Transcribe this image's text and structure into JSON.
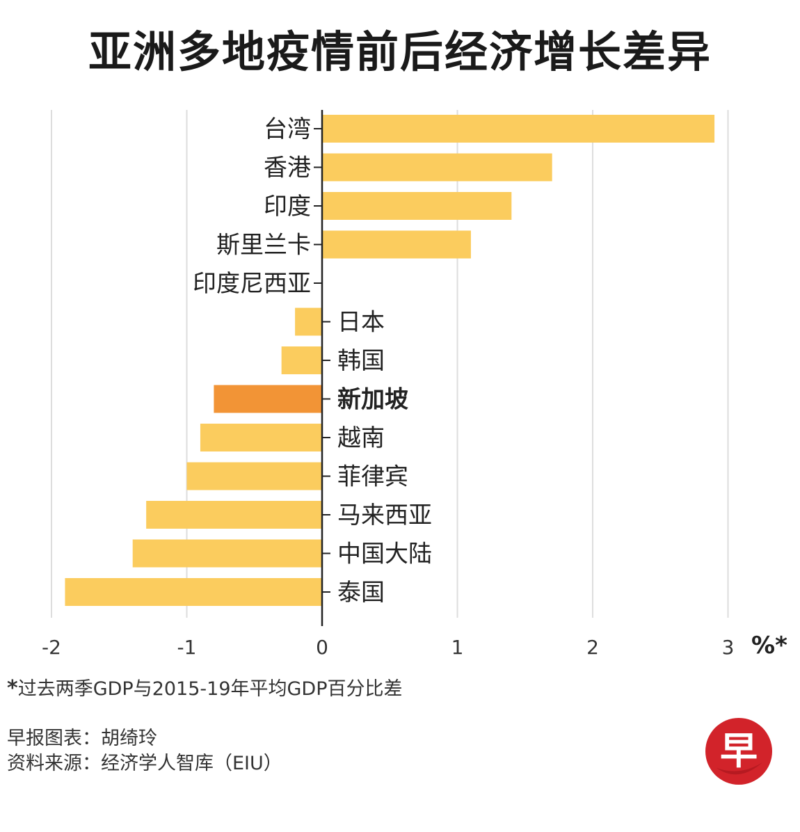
{
  "title": "亚洲多地疫情前后经济增长差异",
  "chart_data": {
    "type": "bar",
    "orientation": "horizontal",
    "categories": [
      "台湾",
      "香港",
      "印度",
      "斯里兰卡",
      "印度尼西亚",
      "日本",
      "韩国",
      "新加坡",
      "越南",
      "菲律宾",
      "马来西亚",
      "中国大陆",
      "泰国"
    ],
    "values": [
      2.9,
      1.7,
      1.4,
      1.1,
      0.0,
      -0.2,
      -0.3,
      -0.8,
      -0.9,
      -1.0,
      -1.3,
      -1.4,
      -1.9
    ],
    "highlight": "新加坡",
    "x_ticks": [
      "-2",
      "-1",
      "0",
      "1",
      "2",
      "3"
    ],
    "xlim": [
      -2,
      3
    ],
    "unit": "%*",
    "grid": true,
    "colors": {
      "bar": "#FBCC5E",
      "highlight": "#F29436",
      "grid": "#DDDDDD",
      "axis": "#222222"
    }
  },
  "footnote": {
    "marker": "*",
    "text": "过去两季GDP与2015-19年平均GDP百分比差"
  },
  "credits": {
    "chart_by": "早报图表：胡绮玲",
    "source": "资料来源：经济学人智库（EIU）"
  },
  "logo": {
    "glyph": "早",
    "color": "#D2232A"
  }
}
